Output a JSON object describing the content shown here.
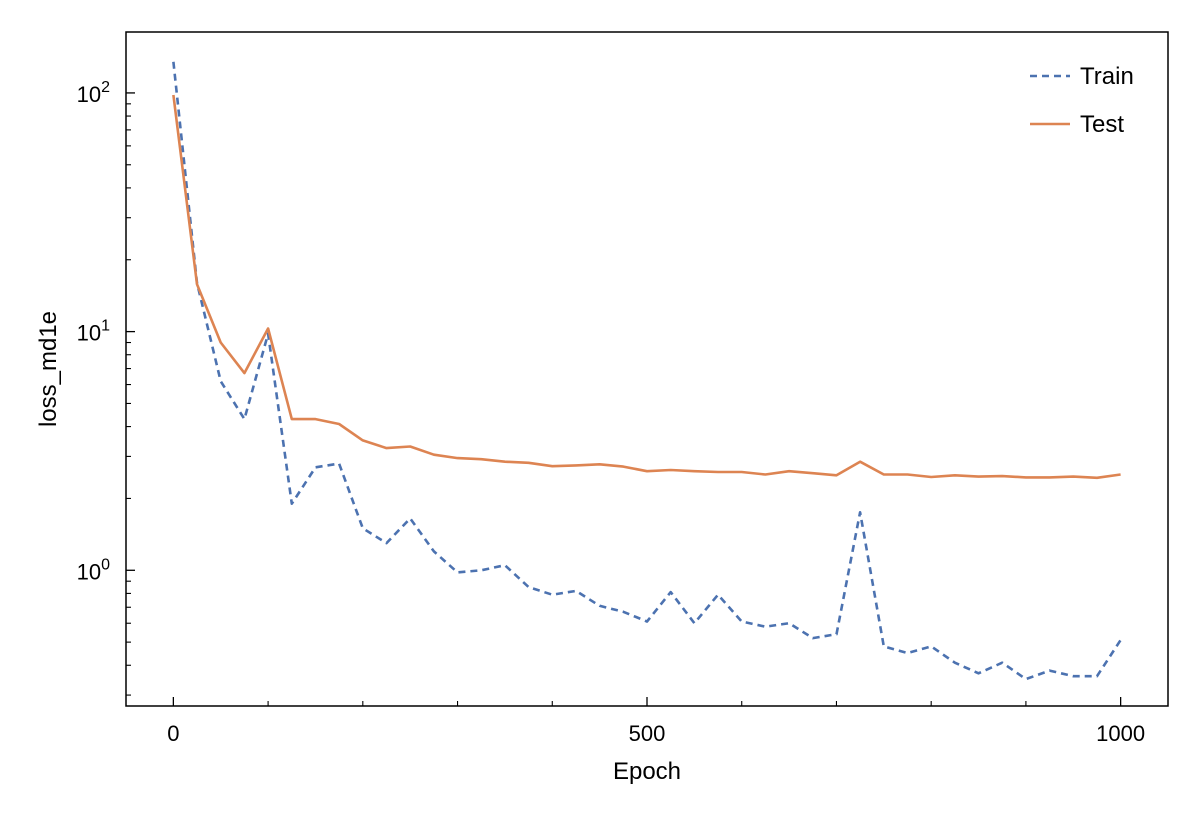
{
  "chart_data": {
    "type": "line",
    "xlabel": "Epoch",
    "ylabel": "loss_md1e",
    "y_scale": "log",
    "xlim": [
      -50,
      1050
    ],
    "ylim": [
      0.27,
      180
    ],
    "x_ticks": [
      0,
      500,
      1000
    ],
    "x_minor_ticks": [
      100,
      200,
      300,
      400,
      600,
      700,
      800,
      900
    ],
    "y_major_ticks": [
      {
        "value": 1,
        "base": "10",
        "exp": "0"
      },
      {
        "value": 10,
        "base": "10",
        "exp": "1"
      },
      {
        "value": 100,
        "base": "10",
        "exp": "2"
      }
    ],
    "y_minor_ticks": [
      0.3,
      0.4,
      0.5,
      0.6,
      0.7,
      0.8,
      0.9,
      2,
      3,
      4,
      5,
      6,
      7,
      8,
      9,
      20,
      30,
      40,
      50,
      60,
      70,
      80,
      90
    ],
    "grid": false,
    "legend_position": "top-right",
    "x": [
      0,
      25,
      50,
      75,
      100,
      125,
      150,
      175,
      200,
      225,
      250,
      275,
      300,
      325,
      350,
      375,
      400,
      425,
      450,
      475,
      500,
      525,
      550,
      575,
      600,
      625,
      650,
      675,
      700,
      725,
      750,
      775,
      800,
      825,
      850,
      875,
      900,
      925,
      950,
      975,
      1000
    ],
    "series": [
      {
        "name": "Train",
        "style": "dashed",
        "color": "#4c72b0",
        "values": [
          135,
          16,
          6.2,
          4.3,
          9.8,
          1.9,
          2.7,
          2.8,
          1.5,
          1.3,
          1.65,
          1.2,
          0.98,
          1.0,
          1.05,
          0.85,
          0.79,
          0.82,
          0.71,
          0.67,
          0.61,
          0.81,
          0.6,
          0.79,
          0.61,
          0.58,
          0.6,
          0.52,
          0.54,
          1.75,
          0.48,
          0.45,
          0.48,
          0.41,
          0.37,
          0.41,
          0.35,
          0.38,
          0.36,
          0.36,
          0.51
        ]
      },
      {
        "name": "Test",
        "style": "solid",
        "color": "#dd8452",
        "values": [
          98,
          15.8,
          9.0,
          6.7,
          10.3,
          4.3,
          4.3,
          4.1,
          3.5,
          3.25,
          3.3,
          3.05,
          2.95,
          2.92,
          2.85,
          2.82,
          2.73,
          2.75,
          2.78,
          2.72,
          2.6,
          2.63,
          2.6,
          2.58,
          2.58,
          2.52,
          2.6,
          2.55,
          2.5,
          2.85,
          2.52,
          2.52,
          2.46,
          2.5,
          2.47,
          2.48,
          2.45,
          2.45,
          2.47,
          2.44,
          2.52
        ]
      }
    ]
  }
}
